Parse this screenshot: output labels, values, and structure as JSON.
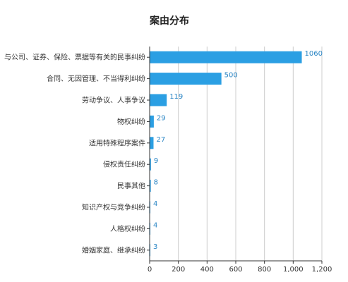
{
  "chart_data": {
    "type": "bar",
    "orientation": "horizontal",
    "title": "案由分布",
    "categories": [
      "与公司、证券、保险、票据等有关的民事纠纷",
      "合同、无因管理、不当得利纠纷",
      "劳动争议、人事争议",
      "物权纠纷",
      "适用特殊程序案件",
      "侵权责任纠纷",
      "民事其他",
      "知识产权与竞争纠纷",
      "人格权纠纷",
      "婚姻家庭、继承纠纷"
    ],
    "values": [
      1060,
      500,
      119,
      29,
      27,
      9,
      8,
      4,
      4,
      3
    ],
    "value_labels": [
      "1060",
      "500",
      "119",
      "29",
      "27",
      "9",
      "8",
      "4",
      "4",
      "3"
    ],
    "xlim": [
      0,
      1200
    ],
    "xticks": [
      0,
      200,
      400,
      600,
      800,
      1000,
      1200
    ],
    "xtick_labels": [
      "0",
      "200",
      "400",
      "600",
      "800",
      "1,000",
      "1,200"
    ],
    "grid": "vertical",
    "legend": "none",
    "colors": {
      "bar": "#2b9fe3",
      "value_label": "#2b86c5",
      "grid": "#cccccc",
      "axis": "#333333"
    }
  }
}
